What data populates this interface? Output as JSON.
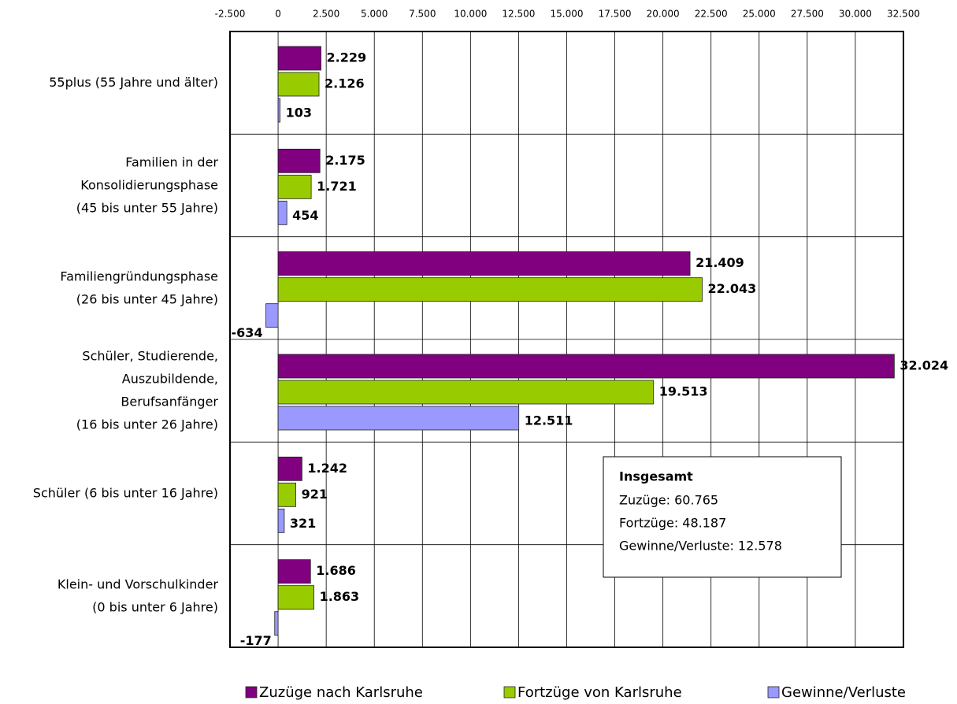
{
  "chart_data": {
    "type": "hbar",
    "categories": [
      "55plus (55 Jahre und älter)",
      "Familien in der\nKonsolidierungsphase\n(45 bis unter 55 Jahre)",
      "Familiengründungsphase\n(26 bis unter 45 Jahre)",
      "Schüler, Studierende,\nAuszubildende,\nBerufsanfänger\n(16 bis unter 26 Jahre)",
      "Schüler (6 bis unter 16 Jahre)",
      "Klein- und Vorschulkinder\n(0 bis unter 6 Jahre)"
    ],
    "series": [
      {
        "name": "Zuzüge nach Karlsruhe",
        "color": "#800080",
        "values": [
          2229,
          2175,
          21409,
          32024,
          1242,
          1686
        ],
        "value_labels": [
          "2.229",
          "2.175",
          "21.409",
          "32.024",
          "1.242",
          "1.686"
        ]
      },
      {
        "name": "Fortzüge von Karlsruhe",
        "color": "#99cc00",
        "values": [
          2126,
          1721,
          22043,
          19513,
          921,
          1863
        ],
        "value_labels": [
          "2.126",
          "1.721",
          "22.043",
          "19.513",
          "921",
          "1.863"
        ]
      },
      {
        "name": "Gewinne/Verluste",
        "color": "#9999ff",
        "values": [
          103,
          454,
          -634,
          12511,
          321,
          -177
        ],
        "value_labels": [
          "103",
          "454",
          "-634",
          "12.511",
          "321",
          "-177"
        ]
      }
    ],
    "xlim": [
      -2500,
      32500
    ],
    "xticks": [
      {
        "value": -2500,
        "label": "-2.500"
      },
      0,
      {
        "value": 2500,
        "label": "2.500"
      },
      {
        "value": 5000,
        "label": "5.000"
      },
      {
        "value": 7500,
        "label": "7.500"
      },
      {
        "value": 10000,
        "label": "10.000"
      },
      {
        "value": 12500,
        "label": "12.500"
      },
      {
        "value": 15000,
        "label": "15.000"
      },
      {
        "value": 17500,
        "label": "17.500"
      },
      {
        "value": 20000,
        "label": "20.000"
      },
      {
        "value": 22500,
        "label": "22.500"
      },
      {
        "value": 25000,
        "label": "25.000"
      },
      {
        "value": 27500,
        "label": "27.500"
      },
      {
        "value": 30000,
        "label": "30.000"
      },
      {
        "value": 32500,
        "label": "32.500"
      }
    ],
    "grid": true,
    "legend": "bottom",
    "annotation": {
      "title": "Insgesamt",
      "lines": [
        "Zuzüge: 60.765",
        "Fortzüge: 48.187",
        "Gewinne/Verluste: 12.578"
      ]
    }
  }
}
